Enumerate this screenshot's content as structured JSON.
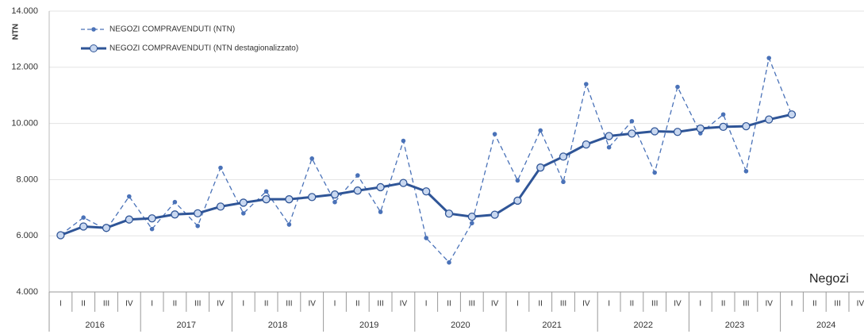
{
  "chart_data": {
    "type": "line",
    "y_label": "NTN",
    "corner_label": "Negozi",
    "categories": [
      "I",
      "II",
      "III",
      "IV",
      "I",
      "II",
      "III",
      "IV",
      "I",
      "II",
      "III",
      "IV",
      "I",
      "II",
      "III",
      "IV",
      "I",
      "II",
      "III",
      "IV",
      "I",
      "II",
      "III",
      "IV",
      "I",
      "II",
      "III",
      "IV",
      "I",
      "II",
      "III",
      "IV",
      "I",
      "II",
      "III",
      "IV"
    ],
    "year_labels": [
      "2016",
      "2017",
      "2018",
      "2019",
      "2020",
      "2021",
      "2022",
      "2023",
      "2024"
    ],
    "series": [
      {
        "name": "NEGOZI COMPRAVENDUTI (NTN)",
        "color": "#4a72b8",
        "dashed": true,
        "values": [
          6030,
          6650,
          6220,
          7400,
          6240,
          7200,
          6350,
          8420,
          6800,
          7580,
          6400,
          8750,
          7200,
          8150,
          6850,
          9380,
          5920,
          5050,
          6450,
          9620,
          7970,
          9750,
          7920,
          11400,
          9150,
          10080,
          8250,
          11300,
          9650,
          10320,
          8300,
          12330,
          10300,
          null,
          null,
          null
        ]
      },
      {
        "name": "NEGOZI COMPRAVENDUTI (NTN destagionalizzato)",
        "color": "#2f5597",
        "dashed": false,
        "values": [
          6020,
          6330,
          6280,
          6580,
          6620,
          6760,
          6800,
          7040,
          7180,
          7300,
          7300,
          7380,
          7470,
          7610,
          7730,
          7880,
          7580,
          6790,
          6680,
          6750,
          7250,
          8430,
          8820,
          9250,
          9550,
          9640,
          9720,
          9700,
          9820,
          9880,
          9900,
          10140,
          10320,
          null,
          null,
          null
        ]
      }
    ],
    "ylim": [
      4000,
      14000
    ],
    "yticks": [
      {
        "value": 4000,
        "label": "4.000"
      },
      {
        "value": 6000,
        "label": "6.000"
      },
      {
        "value": 8000,
        "label": "8.000"
      },
      {
        "value": 10000,
        "label": "10.000"
      },
      {
        "value": 12000,
        "label": "12.000"
      },
      {
        "value": 14000,
        "label": "14.000"
      }
    ],
    "grid": true
  }
}
